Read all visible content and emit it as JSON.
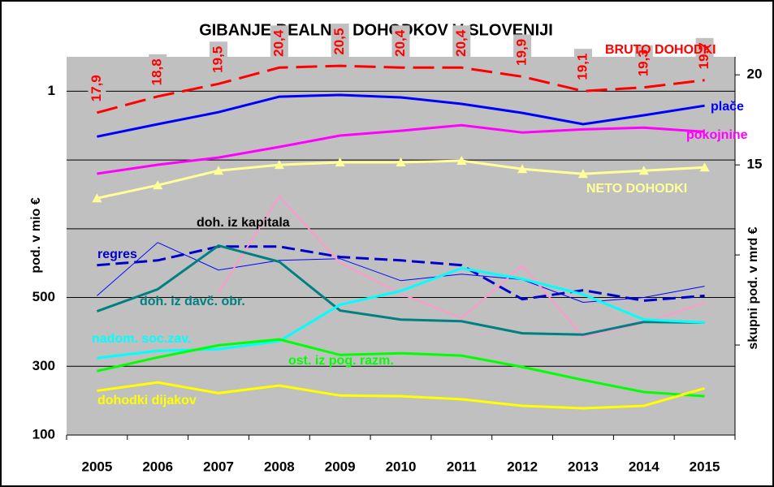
{
  "chart_data": {
    "type": "line",
    "title": "GIBANJE REALNIH DOHODKOV V SLOVENIJI",
    "ylabel": "pod. v mio €",
    "y2label": "skupni pod. v mrd €",
    "categories": [
      "2005",
      "2006",
      "2007",
      "2008",
      "2009",
      "2010",
      "2011",
      "2012",
      "2013",
      "2014",
      "2015"
    ],
    "ylim": [
      100,
      1200
    ],
    "yticks": [
      100,
      300,
      500,
      {
        "value": 1100,
        "label": "1"
      }
    ],
    "ygrid": [
      100,
      300,
      500,
      700,
      900,
      1100
    ],
    "y2lim": [
      0,
      21
    ],
    "y2ticks": [
      15,
      20
    ],
    "y2minor": [
      5,
      10
    ],
    "series": [
      {
        "name": "BRUTO DOHODKI",
        "color": "#ff0000",
        "label_color": "#ff0000",
        "axis": "y2",
        "dash": true,
        "width": 3,
        "values": [
          17.9,
          18.8,
          19.5,
          20.4,
          20.5,
          20.4,
          20.4,
          19.9,
          19.1,
          19.3,
          19.7
        ],
        "value_labels": [
          "17,9",
          "18,8",
          "19,5",
          "20,4",
          "20,5",
          "20,4",
          "20,4",
          "19,9",
          "19,1",
          "19,3",
          "19,7"
        ]
      },
      {
        "name": "plače",
        "color": "#0000ff",
        "label_color": "#0000ff",
        "width": 3,
        "values": [
          968,
          1004,
          1039,
          1084,
          1089,
          1082,
          1063,
          1037,
          1004,
          1030,
          1058
        ]
      },
      {
        "name": "pokojnine",
        "color": "#ff00ff",
        "label_color": "#ff00ff",
        "width": 3,
        "values": [
          860,
          886,
          907,
          938,
          971,
          985,
          1001,
          980,
          989,
          994,
          982
        ]
      },
      {
        "name": "NETO DOHODKI",
        "color": "#ffff99",
        "label_color": "#ffff99",
        "axis": "y2",
        "marker": "triangle",
        "width": 3,
        "values": [
          13.15,
          13.87,
          14.68,
          15.0,
          15.14,
          15.14,
          15.23,
          14.77,
          14.5,
          14.68,
          14.86
        ]
      },
      {
        "name": "regres",
        "color": "#0000cc",
        "label_color": "#0000cc",
        "dash": true,
        "width": 3,
        "values": [
          594,
          608,
          648,
          648,
          618,
          608,
          594,
          495,
          521,
          491,
          505
        ]
      },
      {
        "name": null,
        "color": "#0000ff",
        "width": 1,
        "values": [
          505,
          660,
          580,
          608,
          613,
          549,
          568,
          552,
          486,
          500,
          533
        ]
      },
      {
        "name": "doh. iz kapitala",
        "color": "#ff99cc",
        "label_color": "#000000",
        "width": 2,
        "values": [
          null,
          null,
          514,
          794,
          601,
          511,
          440,
          593,
          386,
          426,
          485
        ]
      },
      {
        "name": "doh. iz davč. obr.",
        "color": "#008080",
        "label_color": "#008080",
        "width": 3,
        "values": [
          460,
          524,
          651,
          604,
          462,
          436,
          431,
          396,
          392,
          429,
          427
        ]
      },
      {
        "name": "nadom. soc.zav.",
        "color": "#00ffff",
        "label_color": "#00ffff",
        "width": 3,
        "values": [
          324,
          345,
          350,
          373,
          479,
          519,
          585,
          554,
          509,
          436,
          427
        ]
      },
      {
        "name": "ost. iz pog. razm.",
        "color": "#00ff00",
        "label_color": "#00ff00",
        "width": 3,
        "values": [
          286,
          326,
          361,
          378,
          333,
          338,
          331,
          298,
          260,
          225,
          213
        ]
      },
      {
        "name": "dohodki dijakov",
        "color": "#ffff00",
        "label_color": "#ffff00",
        "width": 3,
        "values": [
          229,
          253,
          222,
          244,
          215,
          213,
          204,
          185,
          178,
          185,
          236
        ]
      }
    ]
  }
}
